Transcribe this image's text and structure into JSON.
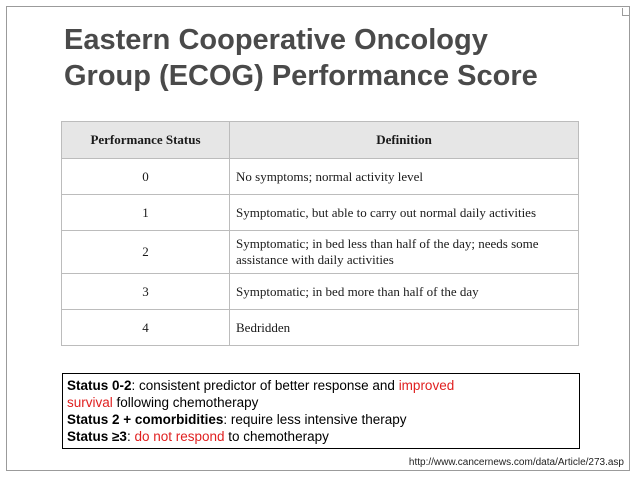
{
  "title": {
    "line1": "Eastern Cooperative Oncology",
    "line2": "Group (ECOG) Performance Score"
  },
  "table": {
    "headers": {
      "status": "Performance Status",
      "definition": "Definition"
    },
    "rows": [
      {
        "status": "0",
        "definition": "No symptoms; normal activity level"
      },
      {
        "status": "1",
        "definition": "Symptomatic, but able to carry out normal daily activities"
      },
      {
        "status": "2",
        "definition": "Symptomatic; in bed less than half of the day; needs some assistance with daily activities"
      },
      {
        "status": "3",
        "definition": "Symptomatic; in bed more than half of the day"
      },
      {
        "status": "4",
        "definition": "Bedridden"
      }
    ]
  },
  "notes": {
    "line1": {
      "bold": "Status 0-2",
      "text1": ": consistent predictor of better response and ",
      "red": "improved"
    },
    "line2": {
      "red": "survival",
      "text": " following chemotherapy"
    },
    "line3": {
      "bold": "Status 2 + comorbidities",
      "text": ": require less intensive therapy"
    },
    "line4": {
      "bold": "Status ≥3",
      "text1": ": ",
      "red": "do not respond",
      "text2": " to chemotherapy"
    }
  },
  "source": "http://www.cancernews.com/data/Article/273.asp",
  "colors": {
    "title": "#4a4a4a",
    "highlight": "#e02020"
  }
}
